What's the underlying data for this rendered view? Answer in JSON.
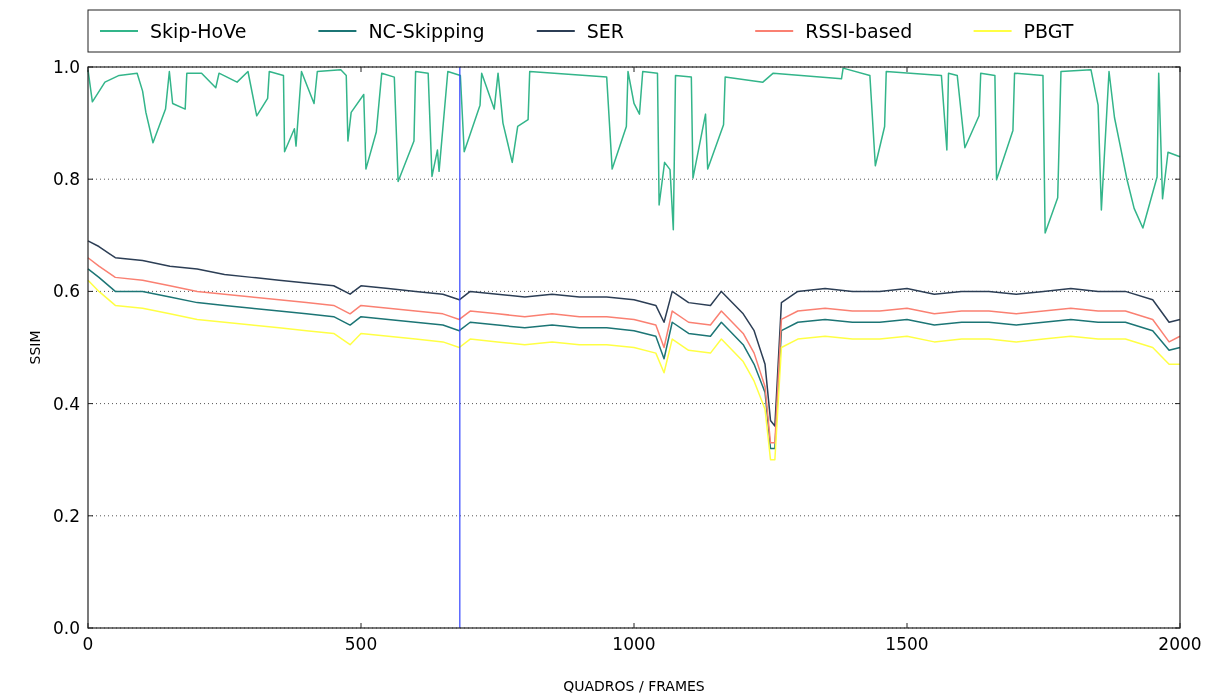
{
  "chart_data": {
    "type": "line",
    "xlabel": "QUADROS / FRAMES",
    "ylabel": "SSIM",
    "xlim": [
      0,
      2000
    ],
    "ylim": [
      0,
      1
    ],
    "xticks": [
      0,
      500,
      1000,
      1500,
      2000
    ],
    "yticks": [
      {
        "value": 0,
        "label": "0.0"
      },
      {
        "value": 0.2,
        "label": "0.2"
      },
      {
        "value": 0.4,
        "label": "0.4"
      },
      {
        "value": 0.6,
        "label": "0.6"
      },
      {
        "value": 0.8,
        "label": "0.8"
      },
      {
        "value": 1,
        "label": "1.0"
      }
    ],
    "grid": "y",
    "legend": "top",
    "line_style": "solid",
    "ref_lines": [
      {
        "axis": "x",
        "value": 681,
        "color": "#3344ff"
      }
    ],
    "series": [
      {
        "name": "Skip-HoVe",
        "color": "#33b58a",
        "x": [
          0,
          8,
          31,
          57,
          90,
          100,
          106,
          119,
          142,
          149,
          155,
          178,
          181,
          208,
          234,
          240,
          273,
          293,
          309,
          329,
          332,
          358,
          360,
          378,
          381,
          391,
          414,
          420,
          463,
          473,
          476,
          482,
          505,
          509,
          528,
          538,
          561,
          568,
          597,
          600,
          623,
          630,
          640,
          643,
          659,
          682,
          689,
          718,
          721,
          744,
          751,
          760,
          777,
          787,
          806,
          809,
          950,
          960,
          986,
          989,
          1000,
          1010,
          1016,
          1043,
          1046,
          1056,
          1066,
          1072,
          1076,
          1105,
          1108,
          1131,
          1135,
          1164,
          1167,
          1236,
          1255,
          1380,
          1383,
          1432,
          1442,
          1459,
          1462,
          1563,
          1573,
          1576,
          1592,
          1606,
          1632,
          1635,
          1661,
          1664,
          1694,
          1697,
          1749,
          1753,
          1776,
          1782,
          1837,
          1850,
          1856,
          1870,
          1880,
          1890,
          1903,
          1916,
          1932,
          1958,
          1961,
          1968,
          1978,
          2000
        ],
        "values": [
          0.995,
          0.938,
          0.973,
          0.985,
          0.989,
          0.957,
          0.919,
          0.865,
          0.925,
          0.992,
          0.935,
          0.925,
          0.989,
          0.989,
          0.963,
          0.989,
          0.973,
          0.992,
          0.913,
          0.944,
          0.992,
          0.985,
          0.849,
          0.89,
          0.859,
          0.992,
          0.935,
          0.992,
          0.995,
          0.985,
          0.868,
          0.919,
          0.951,
          0.818,
          0.884,
          0.989,
          0.982,
          0.796,
          0.868,
          0.992,
          0.989,
          0.805,
          0.852,
          0.814,
          0.992,
          0.985,
          0.849,
          0.932,
          0.989,
          0.925,
          0.989,
          0.9,
          0.83,
          0.894,
          0.906,
          0.992,
          0.982,
          0.818,
          0.894,
          0.992,
          0.935,
          0.916,
          0.992,
          0.989,
          0.754,
          0.83,
          0.817,
          0.71,
          0.985,
          0.982,
          0.802,
          0.916,
          0.818,
          0.897,
          0.982,
          0.973,
          0.989,
          0.979,
          0.998,
          0.985,
          0.824,
          0.894,
          0.992,
          0.985,
          0.852,
          0.989,
          0.985,
          0.856,
          0.913,
          0.989,
          0.985,
          0.799,
          0.887,
          0.989,
          0.985,
          0.704,
          0.767,
          0.992,
          0.995,
          0.932,
          0.745,
          0.992,
          0.91,
          0.862,
          0.799,
          0.748,
          0.713,
          0.804,
          0.989,
          0.765,
          0.848,
          0.84
        ]
      },
      {
        "name": "NC-Skipping",
        "color": "#1c7575",
        "values": [
          0.64,
          0.625,
          0.6,
          0.6,
          0.59,
          0.58,
          0.575,
          0.57,
          0.565,
          0.56,
          0.555,
          0.54,
          0.555,
          0.55,
          0.545,
          0.54,
          0.53,
          0.545,
          0.54,
          0.535,
          0.54,
          0.535,
          0.535,
          0.53,
          0.52,
          0.48,
          0.545,
          0.525,
          0.52,
          0.545,
          0.505,
          0.47,
          0.42,
          0.32,
          0.32,
          0.53,
          0.545,
          0.55,
          0.545,
          0.545,
          0.55,
          0.54,
          0.545,
          0.545,
          0.54,
          0.545,
          0.55,
          0.545,
          0.545,
          0.53,
          0.495,
          0.5
        ]
      },
      {
        "name": "SER",
        "color": "#2c3e55",
        "values": [
          0.69,
          0.68,
          0.66,
          0.655,
          0.645,
          0.64,
          0.63,
          0.625,
          0.62,
          0.615,
          0.61,
          0.595,
          0.61,
          0.605,
          0.6,
          0.595,
          0.585,
          0.6,
          0.595,
          0.59,
          0.595,
          0.59,
          0.59,
          0.585,
          0.575,
          0.545,
          0.6,
          0.58,
          0.575,
          0.6,
          0.56,
          0.53,
          0.47,
          0.37,
          0.36,
          0.58,
          0.6,
          0.605,
          0.6,
          0.6,
          0.605,
          0.595,
          0.6,
          0.6,
          0.595,
          0.6,
          0.605,
          0.6,
          0.6,
          0.585,
          0.545,
          0.55
        ]
      },
      {
        "name": "RSSI-based",
        "color": "#fa8072",
        "values": [
          0.66,
          0.645,
          0.625,
          0.62,
          0.61,
          0.6,
          0.595,
          0.59,
          0.585,
          0.58,
          0.575,
          0.56,
          0.575,
          0.57,
          0.565,
          0.56,
          0.55,
          0.565,
          0.56,
          0.555,
          0.56,
          0.555,
          0.555,
          0.55,
          0.54,
          0.5,
          0.565,
          0.545,
          0.54,
          0.565,
          0.525,
          0.49,
          0.43,
          0.33,
          0.33,
          0.55,
          0.565,
          0.57,
          0.565,
          0.565,
          0.57,
          0.56,
          0.565,
          0.565,
          0.56,
          0.565,
          0.57,
          0.565,
          0.565,
          0.55,
          0.51,
          0.52
        ]
      },
      {
        "name": "PBGT",
        "color": "#ffff44",
        "values": [
          0.62,
          0.6,
          0.575,
          0.57,
          0.56,
          0.55,
          0.545,
          0.54,
          0.535,
          0.53,
          0.525,
          0.505,
          0.525,
          0.52,
          0.515,
          0.51,
          0.5,
          0.515,
          0.51,
          0.505,
          0.51,
          0.505,
          0.505,
          0.5,
          0.49,
          0.455,
          0.515,
          0.495,
          0.49,
          0.515,
          0.475,
          0.44,
          0.39,
          0.3,
          0.3,
          0.5,
          0.515,
          0.52,
          0.515,
          0.515,
          0.52,
          0.51,
          0.515,
          0.515,
          0.51,
          0.515,
          0.52,
          0.515,
          0.515,
          0.5,
          0.47,
          0.47
        ]
      }
    ],
    "x": [
      0,
      20,
      50,
      100,
      150,
      200,
      250,
      300,
      350,
      400,
      450,
      480,
      500,
      550,
      600,
      650,
      680,
      700,
      750,
      800,
      850,
      900,
      950,
      1000,
      1040,
      1055,
      1070,
      1100,
      1140,
      1160,
      1200,
      1220,
      1240,
      1250,
      1258,
      1270,
      1300,
      1350,
      1400,
      1450,
      1500,
      1550,
      1600,
      1650,
      1700,
      1750,
      1800,
      1850,
      1900,
      1950,
      1980,
      2000
    ]
  }
}
